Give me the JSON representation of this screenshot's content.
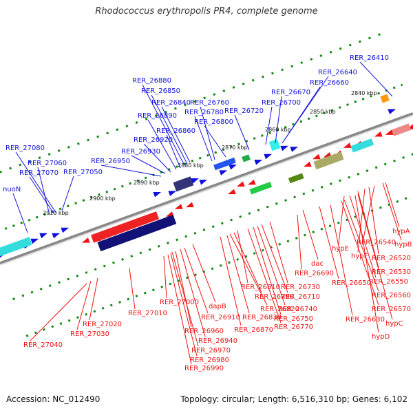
{
  "title": "Rhodococcus erythropolis PR4, complete genome",
  "accession": "Accession: NC_012490",
  "topology": "Topology: circular; Length: 6,516,310 bp; Genes: 6,102",
  "colors": {
    "forward": "#1010dd",
    "reverse": "#ee1111",
    "tick": "#118811",
    "axis": "#888888"
  },
  "kbp_labels": [
    "2840 kbp",
    "2850 kbp",
    "2860 kbp",
    "2870 kbp",
    "2880 kbp",
    "2890 kbp",
    "2900 kbp",
    "2910 kbp"
  ],
  "forward_labels": [
    "RER_26410",
    "RER_26640",
    "RER_26660",
    "RER_26670",
    "RER_26700",
    "RER_26720",
    "RER_26760",
    "RER_26780",
    "RER_26800",
    "RER_26880",
    "RER_26850",
    "RER_26840",
    "RER_26890",
    "RER_26860",
    "RER_26920",
    "RER_26930",
    "RER_26950",
    "RER_27080",
    "RER_27060",
    "RER_27070",
    "RER_27050",
    "nuoN"
  ],
  "reverse_labels": [
    "hypA",
    "hypB",
    "RER_26540",
    "RER_26520",
    "hypF",
    "RER_26530",
    "hypE",
    "RER_26550",
    "dac",
    "RER_26560",
    "RER_26690",
    "RER_26650",
    "RER_26570",
    "hypC",
    "RER_26630",
    "hypD",
    "RER_26730",
    "RER_26810",
    "RER_26710",
    "RER_26790",
    "RER_26740",
    "RER_26820",
    "RER_26750",
    "RER_26830",
    "RER_26770",
    "RER_26870",
    "dapB",
    "RER_26910",
    "RER_26960",
    "RER_26940",
    "RER_26970",
    "RER_26980",
    "RER_26990",
    "RER_27000",
    "RER_27010",
    "RER_27020",
    "RER_27030",
    "RER_27040"
  ]
}
